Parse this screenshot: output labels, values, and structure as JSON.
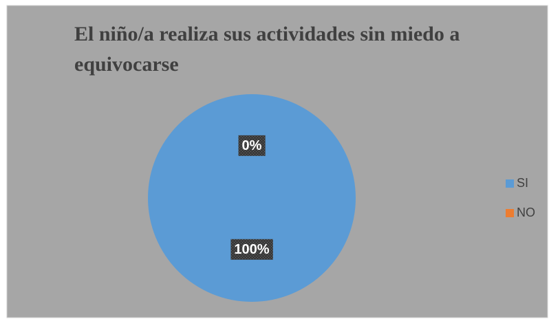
{
  "chart_data": {
    "type": "pie",
    "title": "El niño/a realiza sus actividades sin miedo a equivocarse",
    "categories": [
      "SI",
      "NO"
    ],
    "values": [
      100,
      0
    ],
    "value_labels": [
      "100%",
      "0%"
    ],
    "colors": [
      "#5b9bd5",
      "#ed7d31"
    ],
    "legend": "right"
  }
}
